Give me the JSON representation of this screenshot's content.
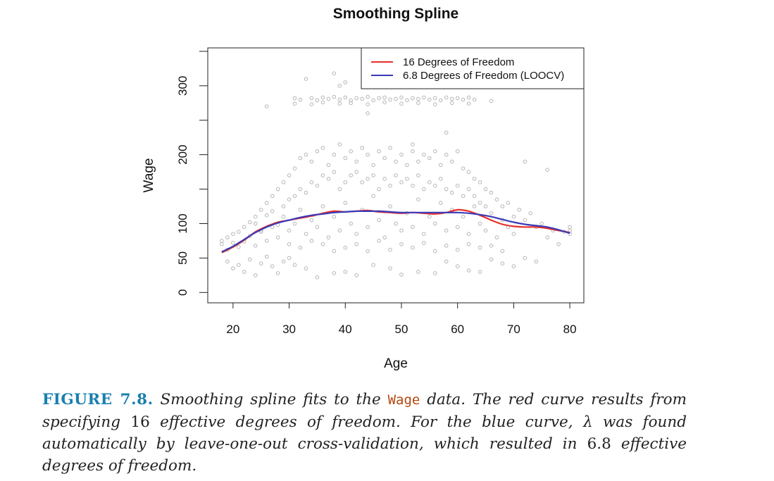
{
  "chart_data": {
    "type": "scatter",
    "title": "Smoothing Spline",
    "xlabel": "Age",
    "ylabel": "Wage",
    "xlim": [
      15.5,
      82.5
    ],
    "ylim": [
      -15,
      355
    ],
    "x_ticks": [
      20,
      30,
      40,
      50,
      60,
      70,
      80
    ],
    "x_tick_labels": [
      "20",
      "30",
      "40",
      "50",
      "60",
      "70",
      "80"
    ],
    "y_ticks": [
      0,
      50,
      100,
      200,
      300
    ],
    "y_tick_labels": [
      "0",
      "50",
      "100",
      "200",
      "300"
    ],
    "y_minor_ticks": [
      150,
      250,
      350
    ],
    "grid": false,
    "legend_position": "top-right",
    "colors": {
      "points": "#b5b5b5",
      "series_16df": "#e8302a",
      "series_loocv": "#3a3ab8"
    },
    "series": [
      {
        "name": "16 Degrees of Freedom",
        "color": "#e8302a",
        "x": [
          18,
          20,
          22,
          24,
          26,
          28,
          30,
          32,
          34,
          36,
          38,
          40,
          42,
          44,
          46,
          48,
          50,
          52,
          54,
          56,
          58,
          60,
          62,
          64,
          66,
          68,
          70,
          72,
          74,
          76,
          78,
          80
        ],
        "y": [
          58,
          66,
          76,
          88,
          96,
          102,
          105,
          108,
          111,
          115,
          118,
          117,
          118,
          119,
          117,
          116,
          115,
          116,
          115,
          114,
          116,
          120,
          118,
          112,
          105,
          99,
          96,
          95,
          95,
          93,
          90,
          87
        ]
      },
      {
        "name": "6.8 Degrees of Freedom (LOOCV)",
        "color": "#3a3ab8",
        "x": [
          18,
          20,
          22,
          24,
          26,
          28,
          30,
          32,
          34,
          36,
          38,
          40,
          42,
          44,
          46,
          48,
          50,
          52,
          54,
          56,
          58,
          60,
          62,
          64,
          66,
          68,
          70,
          72,
          74,
          76,
          78,
          80
        ],
        "y": [
          59,
          67,
          77,
          87,
          95,
          101,
          105,
          109,
          112,
          114,
          116,
          117,
          118,
          118,
          118,
          117,
          116,
          116,
          116,
          116,
          116,
          116,
          115,
          113,
          110,
          106,
          102,
          99,
          97,
          95,
          91,
          86
        ]
      }
    ],
    "scatter_points": {
      "description": "Wage vs Age observations",
      "points": [
        [
          26,
          270
        ],
        [
          33,
          310
        ],
        [
          38,
          318
        ],
        [
          39,
          300
        ],
        [
          40,
          305
        ],
        [
          44,
          260
        ],
        [
          52,
          215
        ],
        [
          58,
          232
        ],
        [
          66,
          278
        ],
        [
          72,
          190
        ],
        [
          76,
          178
        ],
        [
          31,
          282
        ],
        [
          32,
          280
        ],
        [
          34,
          282
        ],
        [
          35,
          279
        ],
        [
          36,
          283
        ],
        [
          37,
          281
        ],
        [
          38,
          284
        ],
        [
          39,
          280
        ],
        [
          40,
          283
        ],
        [
          41,
          279
        ],
        [
          42,
          282
        ],
        [
          43,
          281
        ],
        [
          44,
          284
        ],
        [
          45,
          279
        ],
        [
          46,
          282
        ],
        [
          47,
          283
        ],
        [
          48,
          280
        ],
        [
          49,
          281
        ],
        [
          50,
          283
        ],
        [
          51,
          279
        ],
        [
          52,
          282
        ],
        [
          53,
          281
        ],
        [
          54,
          283
        ],
        [
          55,
          280
        ],
        [
          56,
          282
        ],
        [
          57,
          279
        ],
        [
          58,
          283
        ],
        [
          59,
          281
        ],
        [
          60,
          282
        ],
        [
          61,
          280
        ],
        [
          62,
          283
        ],
        [
          63,
          280
        ],
        [
          31,
          274
        ],
        [
          34,
          273
        ],
        [
          36,
          276
        ],
        [
          39,
          274
        ],
        [
          41,
          275
        ],
        [
          44,
          273
        ],
        [
          47,
          276
        ],
        [
          50,
          274
        ],
        [
          53,
          275
        ],
        [
          56,
          273
        ],
        [
          59,
          275
        ],
        [
          62,
          274
        ],
        [
          19,
          45
        ],
        [
          20,
          35
        ],
        [
          21,
          40
        ],
        [
          22,
          30
        ],
        [
          23,
          48
        ],
        [
          24,
          25
        ],
        [
          25,
          42
        ],
        [
          26,
          52
        ],
        [
          27,
          38
        ],
        [
          28,
          28
        ],
        [
          29,
          45
        ],
        [
          30,
          50
        ],
        [
          31,
          40
        ],
        [
          33,
          35
        ],
        [
          35,
          22
        ],
        [
          38,
          28
        ],
        [
          40,
          30
        ],
        [
          42,
          25
        ],
        [
          45,
          40
        ],
        [
          48,
          35
        ],
        [
          50,
          26
        ],
        [
          53,
          30
        ],
        [
          56,
          28
        ],
        [
          58,
          45
        ],
        [
          60,
          38
        ],
        [
          62,
          32
        ],
        [
          64,
          30
        ],
        [
          66,
          48
        ],
        [
          68,
          42
        ],
        [
          70,
          38
        ],
        [
          72,
          50
        ],
        [
          74,
          45
        ],
        [
          78,
          70
        ],
        [
          80,
          85
        ],
        [
          18,
          70
        ],
        [
          18,
          75
        ],
        [
          19,
          80
        ],
        [
          19,
          62
        ],
        [
          20,
          85
        ],
        [
          20,
          72
        ],
        [
          21,
          88
        ],
        [
          21,
          66
        ],
        [
          22,
          95
        ],
        [
          22,
          74
        ],
        [
          23,
          102
        ],
        [
          23,
          82
        ],
        [
          24,
          110
        ],
        [
          24,
          68
        ],
        [
          25,
          120
        ],
        [
          25,
          90
        ],
        [
          26,
          130
        ],
        [
          26,
          75
        ],
        [
          27,
          140
        ],
        [
          27,
          95
        ],
        [
          28,
          150
        ],
        [
          28,
          80
        ],
        [
          29,
          160
        ],
        [
          29,
          110
        ],
        [
          30,
          170
        ],
        [
          30,
          90
        ],
        [
          31,
          180
        ],
        [
          31,
          100
        ],
        [
          32,
          195
        ],
        [
          32,
          120
        ],
        [
          33,
          200
        ],
        [
          33,
          85
        ],
        [
          34,
          190
        ],
        [
          34,
          105
        ],
        [
          35,
          205
        ],
        [
          35,
          95
        ],
        [
          36,
          210
        ],
        [
          36,
          125
        ],
        [
          37,
          185
        ],
        [
          37,
          80
        ],
        [
          38,
          200
        ],
        [
          38,
          110
        ],
        [
          39,
          215
        ],
        [
          39,
          90
        ],
        [
          40,
          195
        ],
        [
          40,
          130
        ],
        [
          41,
          205
        ],
        [
          41,
          100
        ],
        [
          42,
          190
        ],
        [
          42,
          85
        ],
        [
          43,
          210
        ],
        [
          43,
          120
        ],
        [
          44,
          200
        ],
        [
          44,
          95
        ],
        [
          45,
          185
        ],
        [
          45,
          140
        ],
        [
          46,
          205
        ],
        [
          46,
          105
        ],
        [
          47,
          195
        ],
        [
          47,
          80
        ],
        [
          48,
          210
        ],
        [
          48,
          125
        ],
        [
          49,
          190
        ],
        [
          49,
          100
        ],
        [
          50,
          200
        ],
        [
          50,
          90
        ],
        [
          51,
          185
        ],
        [
          51,
          115
        ],
        [
          52,
          205
        ],
        [
          52,
          95
        ],
        [
          53,
          190
        ],
        [
          53,
          135
        ],
        [
          54,
          200
        ],
        [
          54,
          85
        ],
        [
          55,
          195
        ],
        [
          55,
          110
        ],
        [
          56,
          205
        ],
        [
          56,
          100
        ],
        [
          57,
          185
        ],
        [
          57,
          130
        ],
        [
          58,
          200
        ],
        [
          58,
          90
        ],
        [
          59,
          190
        ],
        [
          59,
          120
        ],
        [
          60,
          205
        ],
        [
          60,
          95
        ],
        [
          61,
          180
        ],
        [
          61,
          110
        ],
        [
          62,
          175
        ],
        [
          62,
          85
        ],
        [
          63,
          165
        ],
        [
          63,
          125
        ],
        [
          64,
          160
        ],
        [
          64,
          100
        ],
        [
          65,
          150
        ],
        [
          65,
          90
        ],
        [
          66,
          145
        ],
        [
          66,
          115
        ],
        [
          67,
          135
        ],
        [
          67,
          80
        ],
        [
          68,
          125
        ],
        [
          68,
          105
        ],
        [
          69,
          130
        ],
        [
          69,
          95
        ],
        [
          70,
          110
        ],
        [
          70,
          85
        ],
        [
          71,
          120
        ],
        [
          72,
          105
        ],
        [
          73,
          115
        ],
        [
          74,
          95
        ],
        [
          75,
          100
        ],
        [
          76,
          80
        ],
        [
          77,
          90
        ],
        [
          79,
          88
        ],
        [
          80,
          95
        ],
        [
          80,
          90
        ],
        [
          24,
          100
        ],
        [
          25,
          88
        ],
        [
          26,
          112
        ],
        [
          27,
          118
        ],
        [
          28,
          98
        ],
        [
          29,
          125
        ],
        [
          30,
          135
        ],
        [
          31,
          140
        ],
        [
          32,
          150
        ],
        [
          33,
          145
        ],
        [
          34,
          160
        ],
        [
          35,
          155
        ],
        [
          36,
          170
        ],
        [
          37,
          165
        ],
        [
          38,
          175
        ],
        [
          39,
          150
        ],
        [
          40,
          160
        ],
        [
          41,
          170
        ],
        [
          42,
          175
        ],
        [
          43,
          160
        ],
        [
          44,
          165
        ],
        [
          45,
          170
        ],
        [
          46,
          150
        ],
        [
          47,
          165
        ],
        [
          48,
          155
        ],
        [
          49,
          170
        ],
        [
          50,
          160
        ],
        [
          51,
          165
        ],
        [
          52,
          155
        ],
        [
          53,
          170
        ],
        [
          54,
          150
        ],
        [
          55,
          160
        ],
        [
          56,
          155
        ],
        [
          57,
          165
        ],
        [
          58,
          150
        ],
        [
          59,
          145
        ],
        [
          60,
          155
        ],
        [
          61,
          140
        ],
        [
          62,
          150
        ],
        [
          63,
          140
        ],
        [
          64,
          130
        ],
        [
          65,
          125
        ],
        [
          30,
          70
        ],
        [
          32,
          65
        ],
        [
          34,
          75
        ],
        [
          36,
          70
        ],
        [
          38,
          60
        ],
        [
          40,
          65
        ],
        [
          42,
          70
        ],
        [
          44,
          60
        ],
        [
          46,
          75
        ],
        [
          48,
          62
        ],
        [
          50,
          70
        ],
        [
          52,
          65
        ],
        [
          54,
          72
        ],
        [
          56,
          60
        ],
        [
          58,
          68
        ],
        [
          60,
          62
        ],
        [
          62,
          70
        ],
        [
          64,
          65
        ],
        [
          66,
          68
        ],
        [
          68,
          60
        ]
      ]
    }
  },
  "caption": {
    "label": "FIGURE 7.8.",
    "text1": "Smoothing spline fits to the",
    "code": "Wage",
    "text2": "data. The red curve results from specifying",
    "num1": "16",
    "text3": "effective degrees of freedom. For the blue curve,",
    "lambda": "λ",
    "text4": "was found automatically by leave-one-out cross-validation, which resulted in",
    "num2": "6.8",
    "text5": "effective degrees of freedom."
  }
}
